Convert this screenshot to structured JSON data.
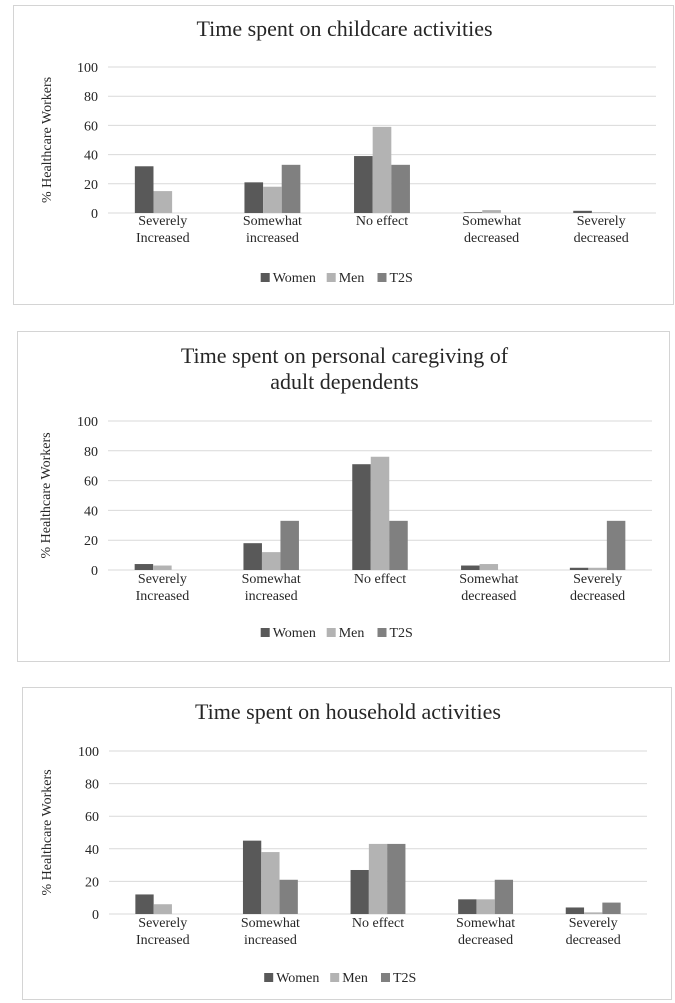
{
  "chart_data": [
    {
      "type": "bar",
      "title": "Time spent on childcare activities",
      "ylabel": "% Healthcare Workers",
      "ylim": [
        0,
        100
      ],
      "yticks": [
        "0",
        "20",
        "40",
        "60",
        "80",
        "100"
      ],
      "grid": true,
      "legend": "bottom",
      "categories": [
        [
          "Severely",
          "Increased"
        ],
        [
          "Somewhat",
          "increased"
        ],
        [
          "No effect"
        ],
        [
          "Somewhat",
          "decreased"
        ],
        [
          "Severely",
          "decreased"
        ]
      ],
      "series": [
        {
          "name": "Women",
          "color": "#595959",
          "values": [
            32,
            21,
            39,
            0.5,
            1.5
          ]
        },
        {
          "name": "Men",
          "color": "#b3b3b3",
          "values": [
            15,
            18,
            59,
            2,
            0.5
          ]
        },
        {
          "name": "T2S",
          "color": "#808080",
          "values": [
            0,
            33,
            33,
            0,
            0
          ]
        }
      ]
    },
    {
      "type": "bar",
      "title": "Time spent on personal caregiving of adult dependents",
      "ylabel": "% Healthcare Workers",
      "ylim": [
        0,
        100
      ],
      "yticks": [
        "0",
        "20",
        "40",
        "60",
        "80",
        "100"
      ],
      "grid": true,
      "legend": "bottom",
      "categories": [
        [
          "Severely",
          "Increased"
        ],
        [
          "Somewhat",
          "increased"
        ],
        [
          "No effect"
        ],
        [
          "Somewhat",
          "decreased"
        ],
        [
          "Severely",
          "decreased"
        ]
      ],
      "series": [
        {
          "name": "Women",
          "color": "#595959",
          "values": [
            4,
            18,
            71,
            3,
            1.5
          ]
        },
        {
          "name": "Men",
          "color": "#b3b3b3",
          "values": [
            3,
            12,
            76,
            4,
            1.5
          ]
        },
        {
          "name": "T2S",
          "color": "#808080",
          "values": [
            0,
            33,
            33,
            0,
            33
          ]
        }
      ]
    },
    {
      "type": "bar",
      "title": "Time spent on household activities",
      "ylabel": "% Healthcare Workers",
      "ylim": [
        0,
        100
      ],
      "yticks": [
        "0",
        "20",
        "40",
        "60",
        "80",
        "100"
      ],
      "grid": true,
      "legend": "bottom",
      "categories": [
        [
          "Severely",
          "Increased"
        ],
        [
          "Somewhat",
          "increased"
        ],
        [
          "No effect"
        ],
        [
          "Somewhat",
          "decreased"
        ],
        [
          "Severely",
          "decreased"
        ]
      ],
      "series": [
        {
          "name": "Women",
          "color": "#595959",
          "values": [
            12,
            45,
            27,
            9,
            4
          ]
        },
        {
          "name": "Men",
          "color": "#b3b3b3",
          "values": [
            6,
            38,
            43,
            9,
            1
          ]
        },
        {
          "name": "T2S",
          "color": "#808080",
          "values": [
            0,
            21,
            43,
            21,
            7
          ]
        }
      ]
    }
  ]
}
